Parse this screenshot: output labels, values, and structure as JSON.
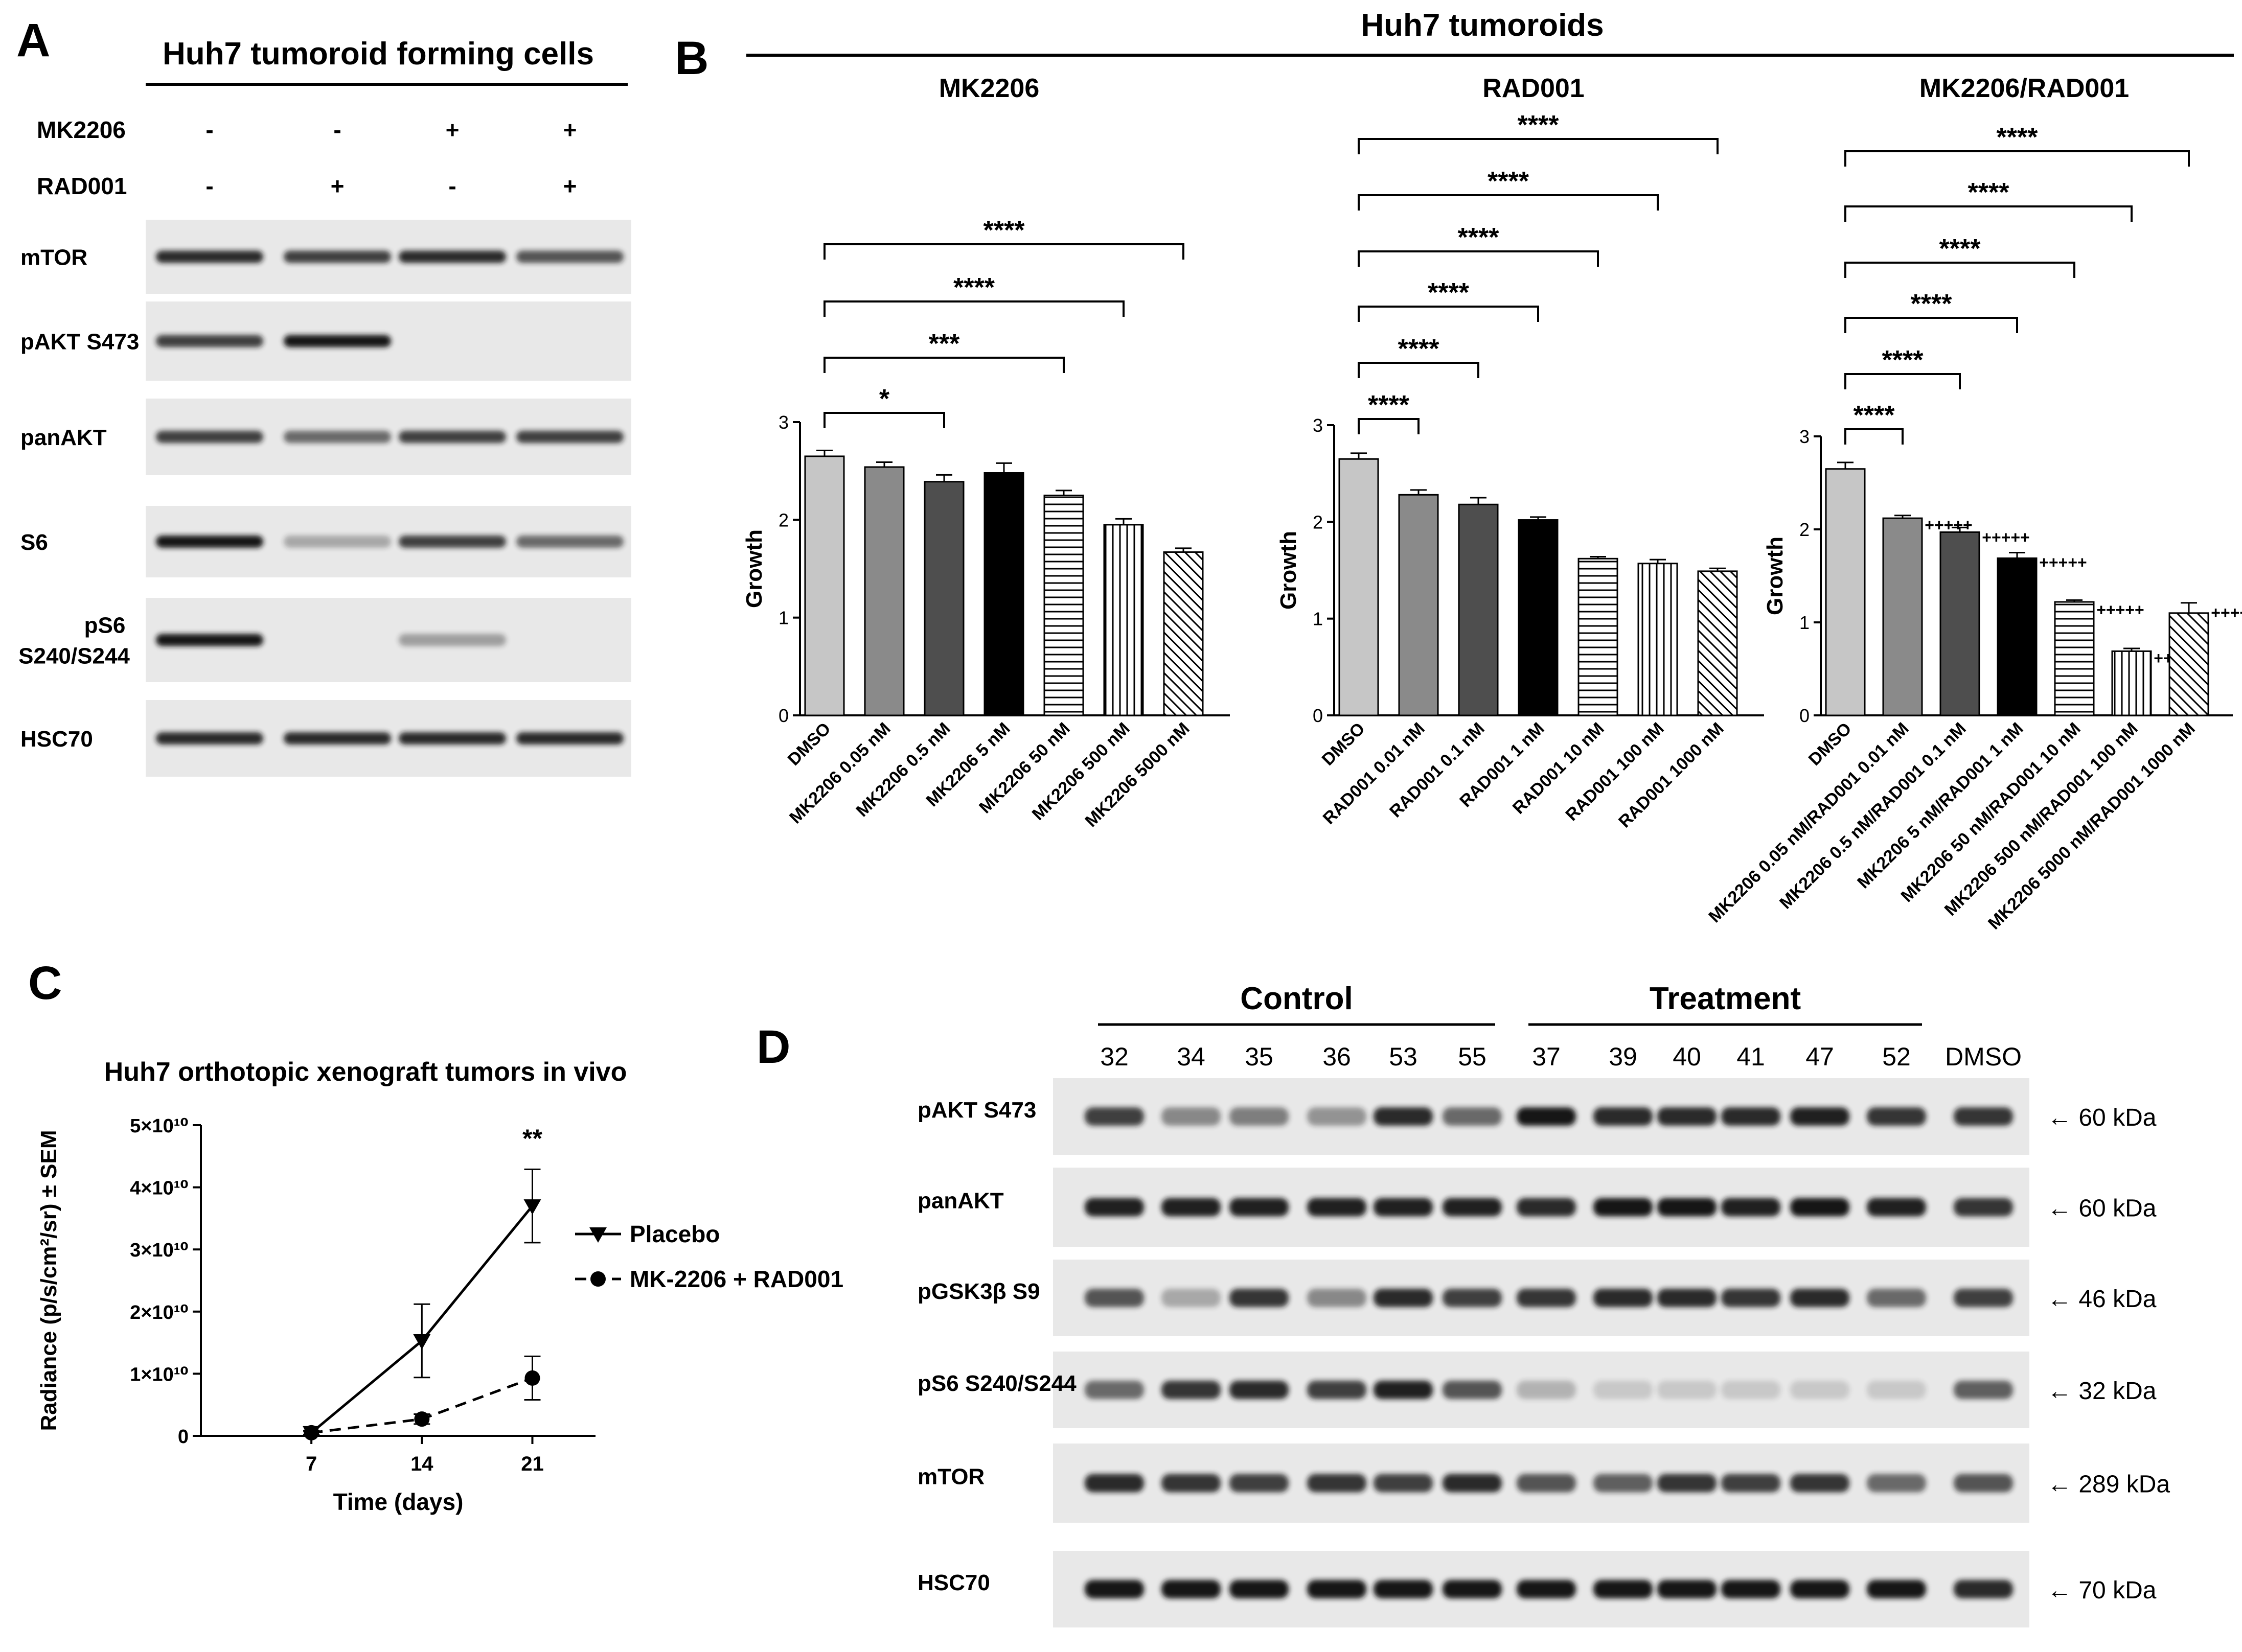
{
  "panel_a": {
    "letter": "A",
    "title": "Huh7 tumoroid forming cells",
    "treatments": [
      {
        "name": "MK2206",
        "signs": [
          "-",
          "-",
          "+",
          "+"
        ]
      },
      {
        "name": "RAD001",
        "signs": [
          "-",
          "+",
          "-",
          "+"
        ]
      }
    ],
    "blots": [
      {
        "label": "mTOR",
        "bands": [
          0.9,
          0.8,
          0.9,
          0.7
        ]
      },
      {
        "label": "pAKT S473",
        "bands": [
          0.8,
          1.0,
          0,
          0
        ]
      },
      {
        "label": "panAKT",
        "bands": [
          0.8,
          0.6,
          0.8,
          0.8
        ]
      },
      {
        "label": "S6",
        "bands": [
          1.0,
          0.3,
          0.8,
          0.6
        ]
      },
      {
        "label": "pS6 S240/S244",
        "bands": [
          1.0,
          0,
          0.35,
          0
        ]
      },
      {
        "label": "HSC70",
        "bands": [
          0.9,
          0.9,
          0.9,
          0.9
        ]
      }
    ]
  },
  "panel_b": {
    "letter": "B",
    "title": "Huh7 tumoroids"
  },
  "panel_c": {
    "letter": "C"
  },
  "panel_d": {
    "letter": "D",
    "groups": [
      {
        "label": "Control",
        "samples": [
          "32",
          "34",
          "35",
          "36",
          "53",
          "55"
        ]
      },
      {
        "label": "Treatment",
        "samples": [
          "37",
          "39",
          "40",
          "41",
          "47",
          "52"
        ]
      }
    ],
    "extra_sample": "DMSO",
    "blots": [
      {
        "label": "pAKT S473",
        "size": "← 60 kDa",
        "bands": [
          0.8,
          0.45,
          0.5,
          0.4,
          0.9,
          0.6,
          1.0,
          0.9,
          0.9,
          0.9,
          0.95,
          0.85,
          0.85
        ]
      },
      {
        "label": "panAKT",
        "size": "← 60 kDa",
        "bands": [
          0.95,
          0.95,
          0.95,
          0.95,
          0.95,
          0.95,
          0.9,
          1.0,
          1.0,
          0.95,
          1.0,
          0.95,
          0.85
        ]
      },
      {
        "label": "pGSK3β S9",
        "size": "← 46 kDa",
        "bands": [
          0.7,
          0.3,
          0.85,
          0.45,
          0.9,
          0.8,
          0.85,
          0.9,
          0.9,
          0.85,
          0.9,
          0.6,
          0.8
        ]
      },
      {
        "label": "pS6 S240/S244",
        "size": "← 32 kDa",
        "bands": [
          0.6,
          0.85,
          0.9,
          0.8,
          0.95,
          0.7,
          0.25,
          0.15,
          0.15,
          0.15,
          0.15,
          0.15,
          0.65
        ]
      },
      {
        "label": "mTOR",
        "size": "← 289 kDa",
        "bands": [
          0.9,
          0.85,
          0.8,
          0.85,
          0.8,
          0.9,
          0.7,
          0.65,
          0.85,
          0.8,
          0.85,
          0.6,
          0.7
        ]
      },
      {
        "label": "HSC70",
        "size": "← 70 kDa",
        "bands": [
          1.0,
          1.0,
          1.0,
          1.0,
          1.0,
          1.0,
          1.0,
          1.0,
          1.0,
          1.0,
          1.0,
          1.0,
          0.9
        ]
      }
    ]
  },
  "colors": {
    "blot_background": "#e8e8e8",
    "band": "#141414",
    "line": "#000000"
  },
  "chart_data": [
    {
      "type": "bar",
      "title": "MK2206",
      "ylabel": "Growth",
      "ylim": [
        0,
        3
      ],
      "yticks": [
        "0",
        "1",
        "2",
        "3"
      ],
      "categories": [
        "DMSO",
        "MK2206 0.05 nM",
        "MK2206 0.5 nM",
        "MK2206 5 nM",
        "MK2206 50 nM",
        "MK2206 500 nM",
        "MK2206 5000 nM"
      ],
      "values": [
        2.65,
        2.54,
        2.39,
        2.48,
        2.25,
        1.95,
        1.67
      ],
      "errors": [
        0.06,
        0.05,
        0.07,
        0.1,
        0.05,
        0.06,
        0.04
      ],
      "fills": [
        "#c6c6c6",
        "#8a8a8a",
        "#4e4e4e",
        "#000000",
        "hlines",
        "vlines",
        "diag"
      ],
      "comparisons": [
        {
          "from": 0,
          "to": 2,
          "label": "*"
        },
        {
          "from": 0,
          "to": 4,
          "label": "***"
        },
        {
          "from": 0,
          "to": 5,
          "label": "****"
        },
        {
          "from": 0,
          "to": 6,
          "label": "****"
        }
      ]
    },
    {
      "type": "bar",
      "title": "RAD001",
      "ylabel": "Growth",
      "ylim": [
        0,
        3
      ],
      "yticks": [
        "0",
        "1",
        "2",
        "3"
      ],
      "categories": [
        "DMSO",
        "RAD001 0.01 nM",
        "RAD001 0.1 nM",
        "RAD001 1 nM",
        "RAD001 10 nM",
        "RAD001 100 nM",
        "RAD001 1000 nM"
      ],
      "values": [
        2.65,
        2.28,
        2.18,
        2.02,
        1.62,
        1.57,
        1.49
      ],
      "errors": [
        0.06,
        0.05,
        0.07,
        0.03,
        0.02,
        0.04,
        0.03
      ],
      "fills": [
        "#c6c6c6",
        "#8a8a8a",
        "#4e4e4e",
        "#000000",
        "hlines",
        "vlines",
        "diag"
      ],
      "comparisons": [
        {
          "from": 0,
          "to": 1,
          "label": "****"
        },
        {
          "from": 0,
          "to": 2,
          "label": "****"
        },
        {
          "from": 0,
          "to": 3,
          "label": "****"
        },
        {
          "from": 0,
          "to": 4,
          "label": "****"
        },
        {
          "from": 0,
          "to": 5,
          "label": "****"
        },
        {
          "from": 0,
          "to": 6,
          "label": "****"
        }
      ]
    },
    {
      "type": "bar",
      "title": "MK2206/RAD001",
      "ylabel": "Growth",
      "ylim": [
        0,
        3
      ],
      "yticks": [
        "0",
        "1",
        "2",
        "3"
      ],
      "categories": [
        "DMSO",
        "MK2206 0.05 nM/RAD001 0.01 nM",
        "MK2206 0.5 nM/RAD001 0.1 nM",
        "MK2206 5 nM/RAD001 1 nM",
        "MK2206 50 nM/RAD001 10 nM",
        "MK2206 500 nM/RAD001 100 nM",
        "MK2206 5000 nM/RAD001 1000 nM"
      ],
      "values": [
        2.65,
        2.12,
        1.97,
        1.69,
        1.22,
        0.69,
        1.1
      ],
      "errors": [
        0.07,
        0.03,
        0.05,
        0.06,
        0.02,
        0.03,
        0.11
      ],
      "fills": [
        "#c6c6c6",
        "#8a8a8a",
        "#4e4e4e",
        "#000000",
        "hlines",
        "vlines",
        "diag"
      ],
      "plus_marks": [
        "",
        "+++++",
        "+++++",
        "+++++",
        "+++++",
        "+++++",
        "+++++"
      ],
      "comparisons": [
        {
          "from": 0,
          "to": 1,
          "label": "****"
        },
        {
          "from": 0,
          "to": 2,
          "label": "****"
        },
        {
          "from": 0,
          "to": 3,
          "label": "****"
        },
        {
          "from": 0,
          "to": 4,
          "label": "****"
        },
        {
          "from": 0,
          "to": 5,
          "label": "****"
        },
        {
          "from": 0,
          "to": 6,
          "label": "****"
        }
      ]
    },
    {
      "type": "line",
      "title": "Huh7 orthotopic xenograft tumors in vivo",
      "xlabel": "Time (days)",
      "ylabel": "Radiance (p/s/cm²/sr) ± SEM",
      "x": [
        7,
        14,
        21
      ],
      "xlim": [
        0,
        25
      ],
      "ylim": [
        0,
        50000000000
      ],
      "xticks": [
        "7",
        "14",
        "21"
      ],
      "yticks": [
        "0",
        "1×10¹⁰",
        "2×10¹⁰",
        "3×10¹⁰",
        "4×10¹⁰",
        "5×10¹⁰"
      ],
      "series": [
        {
          "name": "Placebo",
          "values": [
            500000000,
            15300000000,
            37000000000
          ],
          "errors": [
            300000000,
            5900000000,
            5900000000
          ],
          "marker": "triangle",
          "dash": "solid"
        },
        {
          "name": "MK-2206 + RAD001",
          "values": [
            500000000,
            2700000000,
            9300000000
          ],
          "errors": [
            300000000,
            800000000,
            3500000000
          ],
          "marker": "circle",
          "dash": "dashed"
        }
      ],
      "annotations": [
        {
          "x": 21,
          "label": "**"
        }
      ],
      "legend_position": "right"
    }
  ]
}
